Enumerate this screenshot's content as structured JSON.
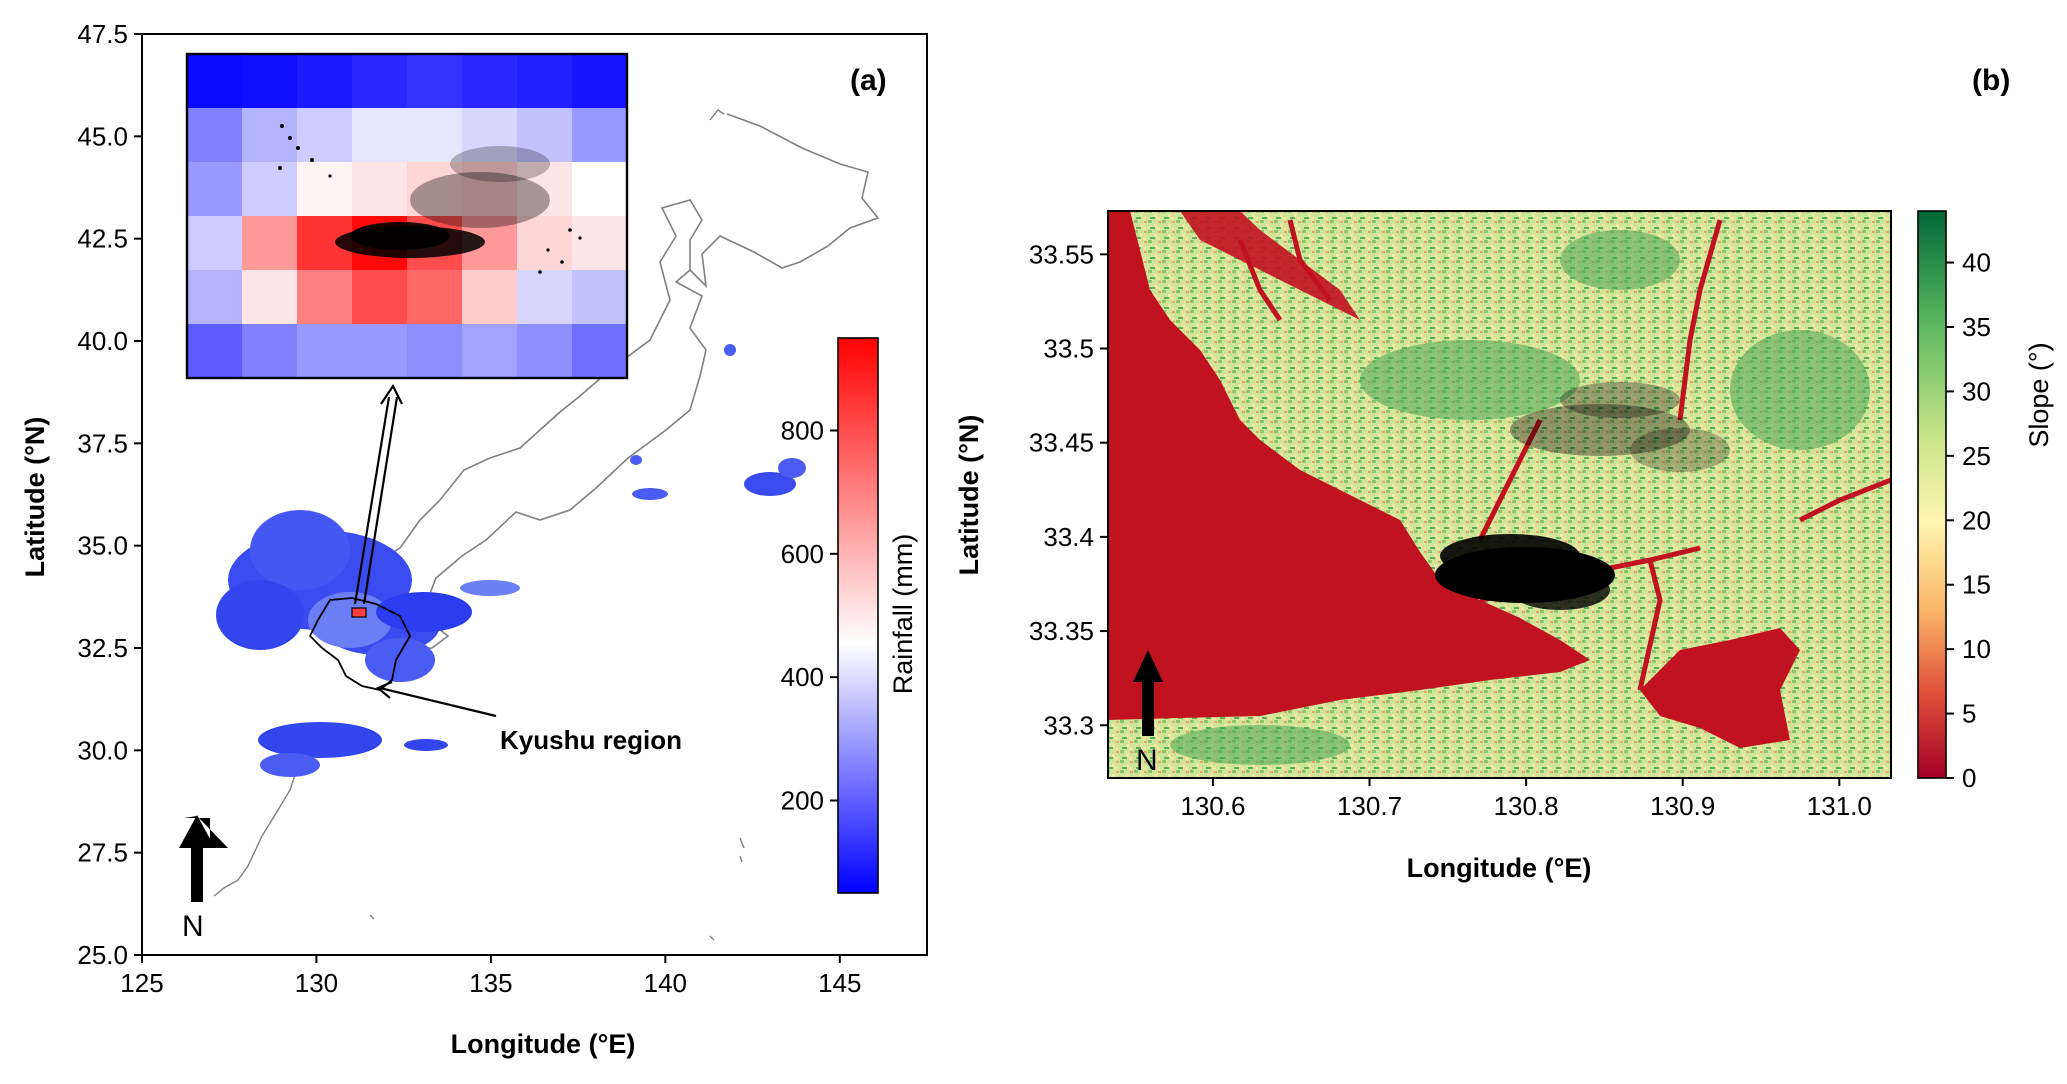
{
  "panel_a": {
    "label": "(a)",
    "xlabel": "Longitude (°E)",
    "ylabel": "Latitude (°N)",
    "xticks": [
      "125",
      "130",
      "135",
      "140",
      "145"
    ],
    "yticks": [
      "25.0",
      "27.5",
      "30.0",
      "32.5",
      "35.0",
      "37.5",
      "40.0",
      "42.5",
      "45.0",
      "47.5"
    ],
    "xlim": [
      125,
      147.5
    ],
    "ylim": [
      25,
      47.5
    ],
    "colorbar": {
      "label": "Rainfall (mm)",
      "ticks": [
        "200",
        "400",
        "600",
        "800"
      ],
      "range": [
        50,
        950
      ],
      "colors": [
        "#0000ff",
        "#ffffff",
        "#ff0000"
      ]
    },
    "annotation": "Kyushu region",
    "north": "N",
    "inset_grid": [
      [
        0.02,
        0.03,
        0.05,
        0.08,
        0.1,
        0.08,
        0.06,
        0.04
      ],
      [
        0.25,
        0.35,
        0.4,
        0.45,
        0.45,
        0.42,
        0.38,
        0.3
      ],
      [
        0.3,
        0.4,
        0.52,
        0.55,
        0.58,
        0.6,
        0.55,
        0.5
      ],
      [
        0.4,
        0.7,
        0.9,
        0.98,
        0.85,
        0.7,
        0.58,
        0.55
      ],
      [
        0.35,
        0.55,
        0.75,
        0.85,
        0.8,
        0.6,
        0.42,
        0.38
      ],
      [
        0.18,
        0.25,
        0.3,
        0.3,
        0.28,
        0.32,
        0.28,
        0.22
      ]
    ]
  },
  "panel_b": {
    "label": "(b)",
    "xlabel": "Longitude (°E)",
    "ylabel": "Latitude (°N)",
    "xticks": [
      "130.6",
      "130.7",
      "130.8",
      "130.9",
      "131.0"
    ],
    "yticks": [
      "33.3",
      "33.35",
      "33.4",
      "33.45",
      "33.5",
      "33.55"
    ],
    "colorbar": {
      "label": "Slope (°)",
      "ticks": [
        "0",
        "5",
        "10",
        "15",
        "20",
        "25",
        "30",
        "35",
        "40"
      ],
      "range": [
        0,
        44
      ],
      "colors": [
        "#a50026",
        "#f46d43",
        "#fee08b",
        "#d9ef8b",
        "#66bd63",
        "#006837"
      ]
    },
    "north": "N"
  }
}
